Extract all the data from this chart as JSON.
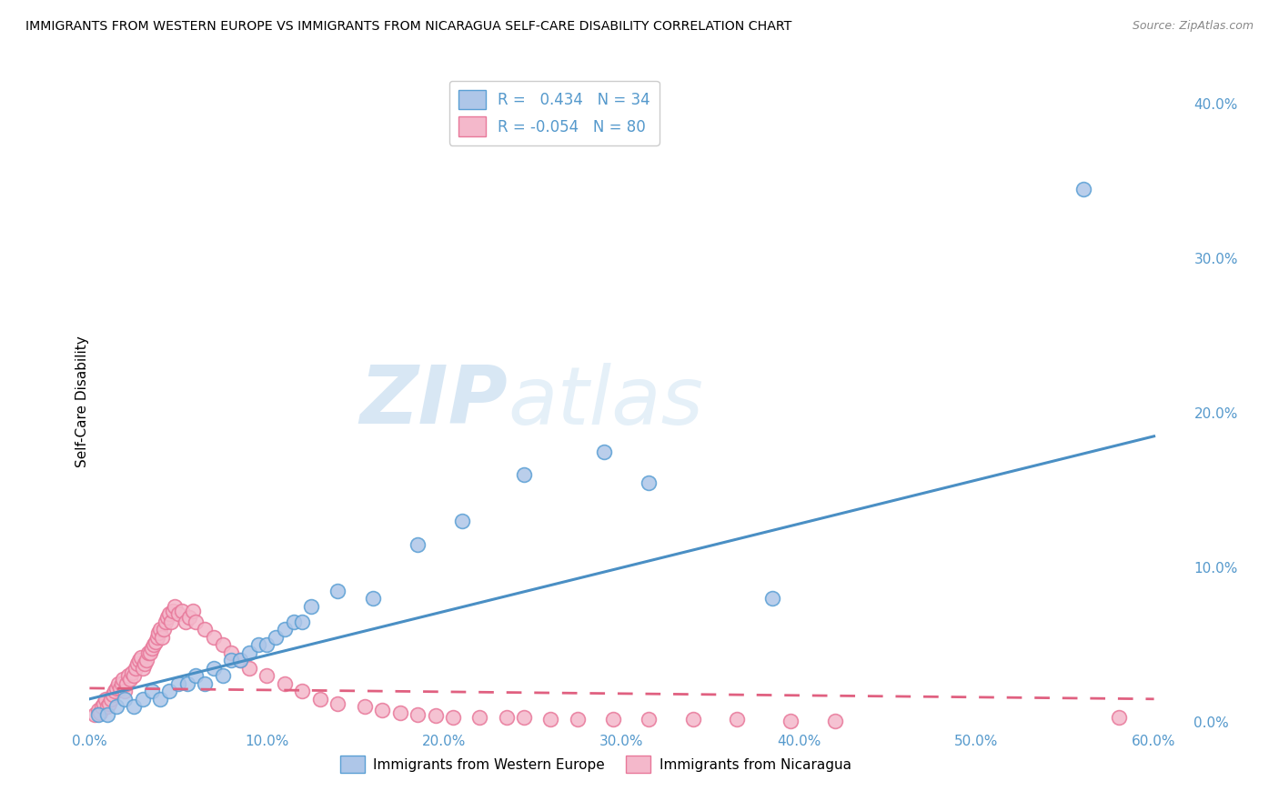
{
  "title": "IMMIGRANTS FROM WESTERN EUROPE VS IMMIGRANTS FROM NICARAGUA SELF-CARE DISABILITY CORRELATION CHART",
  "source": "Source: ZipAtlas.com",
  "ylabel": "Self-Care Disability",
  "xlim": [
    0.0,
    0.62
  ],
  "ylim": [
    -0.005,
    0.42
  ],
  "x_ticks": [
    0.0,
    0.1,
    0.2,
    0.3,
    0.4,
    0.5,
    0.6
  ],
  "x_tick_labels": [
    "0.0%",
    "10.0%",
    "20.0%",
    "30.0%",
    "40.0%",
    "50.0%",
    "60.0%"
  ],
  "y_ticks": [
    0.0,
    0.1,
    0.2,
    0.3,
    0.4
  ],
  "y_tick_labels": [
    "0.0%",
    "10.0%",
    "20.0%",
    "30.0%",
    "40.0%"
  ],
  "blue_fill_color": "#aec6e8",
  "pink_fill_color": "#f4b8cb",
  "blue_edge_color": "#5a9fd4",
  "pink_edge_color": "#e8789a",
  "blue_line_color": "#4a8fc4",
  "pink_line_color": "#e06080",
  "R_blue": 0.434,
  "N_blue": 34,
  "R_pink": -0.054,
  "N_pink": 80,
  "legend_label_blue": "Immigrants from Western Europe",
  "legend_label_pink": "Immigrants from Nicaragua",
  "watermark_zip": "ZIP",
  "watermark_atlas": "atlas",
  "background_color": "#ffffff",
  "grid_color": "#cccccc",
  "axis_label_color": "#5599cc",
  "blue_scatter_x": [
    0.005,
    0.01,
    0.015,
    0.02,
    0.025,
    0.03,
    0.035,
    0.04,
    0.045,
    0.05,
    0.055,
    0.06,
    0.065,
    0.07,
    0.075,
    0.08,
    0.085,
    0.09,
    0.095,
    0.1,
    0.105,
    0.11,
    0.115,
    0.12,
    0.125,
    0.14,
    0.16,
    0.185,
    0.21,
    0.245,
    0.29,
    0.315,
    0.385,
    0.56
  ],
  "blue_scatter_y": [
    0.005,
    0.005,
    0.01,
    0.015,
    0.01,
    0.015,
    0.02,
    0.015,
    0.02,
    0.025,
    0.025,
    0.03,
    0.025,
    0.035,
    0.03,
    0.04,
    0.04,
    0.045,
    0.05,
    0.05,
    0.055,
    0.06,
    0.065,
    0.065,
    0.075,
    0.085,
    0.08,
    0.115,
    0.13,
    0.16,
    0.175,
    0.155,
    0.08,
    0.345
  ],
  "pink_scatter_x": [
    0.003,
    0.005,
    0.006,
    0.007,
    0.008,
    0.009,
    0.01,
    0.011,
    0.012,
    0.013,
    0.014,
    0.015,
    0.016,
    0.017,
    0.018,
    0.019,
    0.02,
    0.021,
    0.022,
    0.023,
    0.024,
    0.025,
    0.026,
    0.027,
    0.028,
    0.029,
    0.03,
    0.031,
    0.032,
    0.033,
    0.034,
    0.035,
    0.036,
    0.037,
    0.038,
    0.039,
    0.04,
    0.041,
    0.042,
    0.043,
    0.044,
    0.045,
    0.046,
    0.047,
    0.048,
    0.05,
    0.052,
    0.054,
    0.056,
    0.058,
    0.06,
    0.065,
    0.07,
    0.075,
    0.08,
    0.085,
    0.09,
    0.1,
    0.11,
    0.12,
    0.13,
    0.14,
    0.155,
    0.165,
    0.175,
    0.185,
    0.195,
    0.205,
    0.22,
    0.235,
    0.245,
    0.26,
    0.275,
    0.295,
    0.315,
    0.34,
    0.365,
    0.395,
    0.42,
    0.58
  ],
  "pink_scatter_y": [
    0.005,
    0.008,
    0.006,
    0.01,
    0.012,
    0.015,
    0.01,
    0.012,
    0.015,
    0.018,
    0.02,
    0.022,
    0.025,
    0.022,
    0.025,
    0.028,
    0.02,
    0.025,
    0.03,
    0.028,
    0.032,
    0.03,
    0.035,
    0.038,
    0.04,
    0.042,
    0.035,
    0.038,
    0.04,
    0.045,
    0.045,
    0.048,
    0.05,
    0.052,
    0.055,
    0.058,
    0.06,
    0.055,
    0.06,
    0.065,
    0.068,
    0.07,
    0.065,
    0.072,
    0.075,
    0.07,
    0.072,
    0.065,
    0.068,
    0.072,
    0.065,
    0.06,
    0.055,
    0.05,
    0.045,
    0.04,
    0.035,
    0.03,
    0.025,
    0.02,
    0.015,
    0.012,
    0.01,
    0.008,
    0.006,
    0.005,
    0.004,
    0.003,
    0.003,
    0.003,
    0.003,
    0.002,
    0.002,
    0.002,
    0.002,
    0.002,
    0.002,
    0.001,
    0.001,
    0.003
  ],
  "blue_line_x0": 0.0,
  "blue_line_y0": 0.015,
  "blue_line_x1": 0.6,
  "blue_line_y1": 0.185,
  "pink_line_x0": 0.0,
  "pink_line_y0": 0.022,
  "pink_line_x1": 0.6,
  "pink_line_y1": 0.015
}
